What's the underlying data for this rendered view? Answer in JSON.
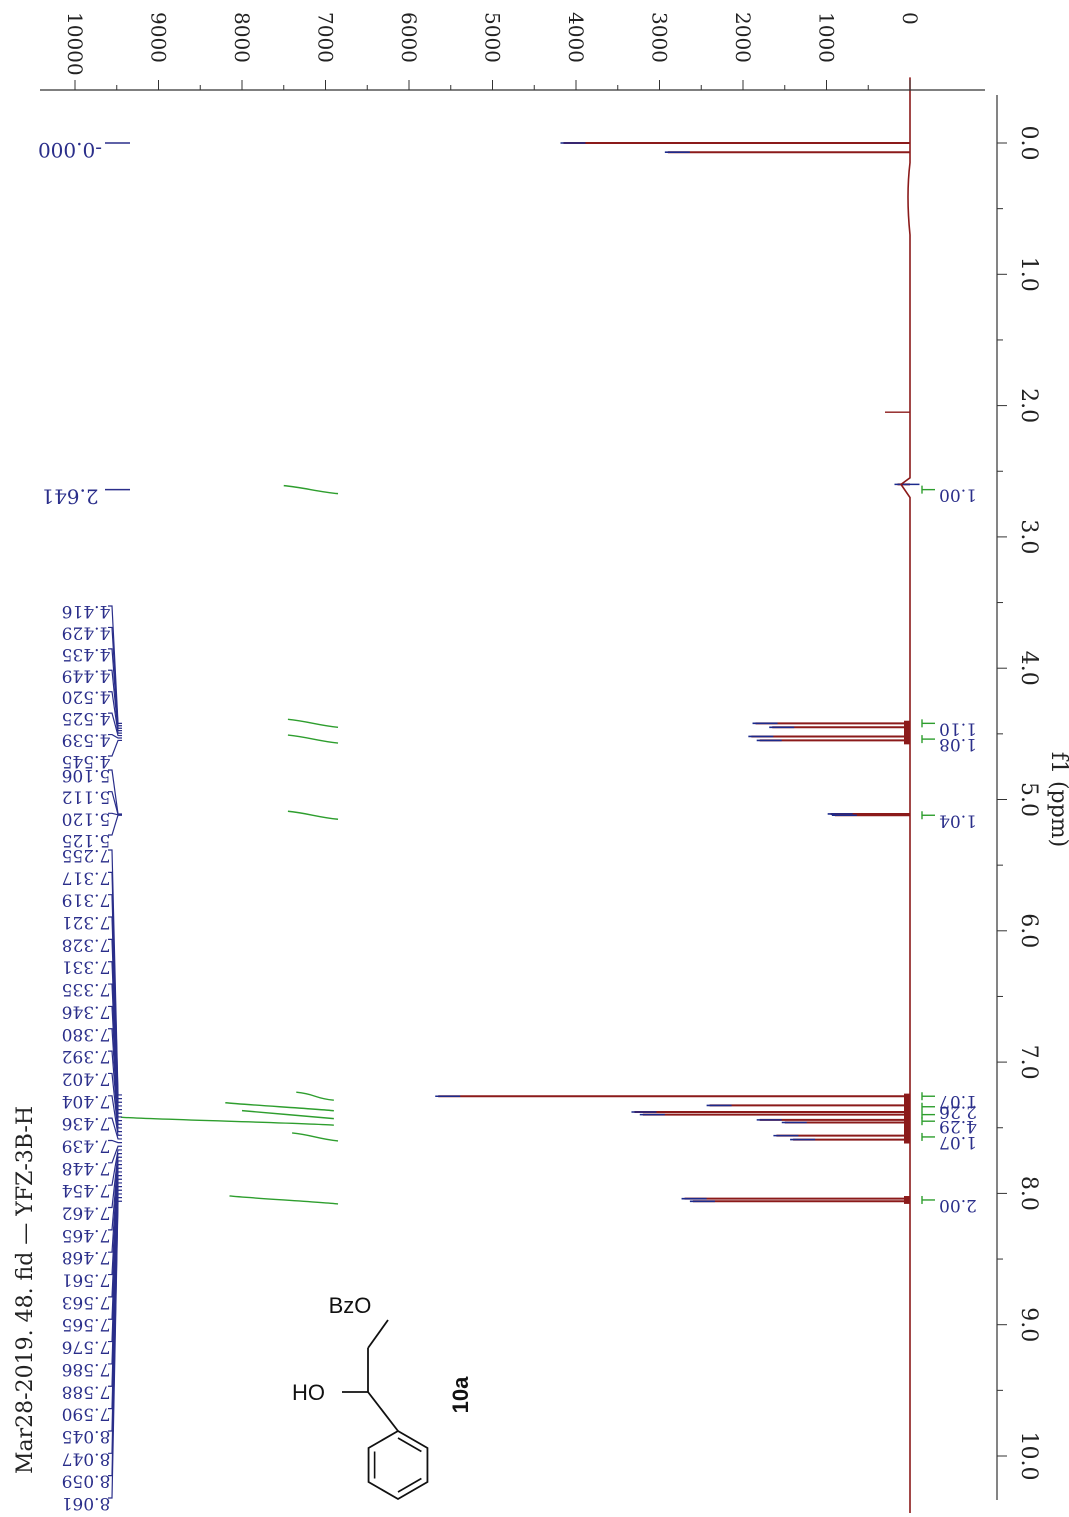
{
  "chart_data": {
    "type": "line",
    "orientation": "rotated-90",
    "title": "Mar28-2019. 48. fid — YFZ-3B-H",
    "xlabel": "f1 (ppm)",
    "ylabel": "",
    "xlim": [
      -0.5,
      10.5
    ],
    "ylim": [
      -500,
      10000
    ],
    "x_ticks": [
      "0.0",
      "1.0",
      "2.0",
      "3.0",
      "4.0",
      "5.0",
      "6.0",
      "7.0",
      "8.0",
      "9.0",
      "10.0"
    ],
    "x_tick_values": [
      0,
      1,
      2,
      3,
      4,
      5,
      6,
      7,
      8,
      9,
      10
    ],
    "y_ticks": [
      "10000",
      "9000",
      "8000",
      "7000",
      "6000",
      "5000",
      "4000",
      "3000",
      "2000",
      "1000",
      "0"
    ],
    "y_tick_values": [
      10000,
      9000,
      8000,
      7000,
      6000,
      5000,
      4000,
      3000,
      2000,
      1000,
      0
    ],
    "peaks": [
      {
        "ppm": 0.0,
        "intensity": 4150
      },
      {
        "ppm": 0.07,
        "intensity": 2900
      },
      {
        "ppm": 2.6,
        "intensity": 150
      },
      {
        "ppm": 4.42,
        "intensity": 1850
      },
      {
        "ppm": 4.45,
        "intensity": 1650
      },
      {
        "ppm": 4.52,
        "intensity": 1900
      },
      {
        "ppm": 4.55,
        "intensity": 1800
      },
      {
        "ppm": 5.11,
        "intensity": 950
      },
      {
        "ppm": 5.12,
        "intensity": 900
      },
      {
        "ppm": 7.26,
        "intensity": 5650
      },
      {
        "ppm": 7.33,
        "intensity": 2400
      },
      {
        "ppm": 7.38,
        "intensity": 3300
      },
      {
        "ppm": 7.4,
        "intensity": 3200
      },
      {
        "ppm": 7.44,
        "intensity": 1800
      },
      {
        "ppm": 7.46,
        "intensity": 1500
      },
      {
        "ppm": 7.56,
        "intensity": 1600
      },
      {
        "ppm": 7.59,
        "intensity": 1400
      },
      {
        "ppm": 8.04,
        "intensity": 2700
      },
      {
        "ppm": 8.06,
        "intensity": 2600
      }
    ],
    "integrals": [
      {
        "ppm": 2.64,
        "label": "1.00",
        "rise_from": 7500,
        "rise_to": 6850
      },
      {
        "ppm": 4.42,
        "label": "1.10",
        "rise_from": 7450,
        "rise_to": 6850
      },
      {
        "ppm": 4.54,
        "label": "1.08",
        "rise_from": 7450,
        "rise_to": 6850
      },
      {
        "ppm": 5.12,
        "label": "1.04",
        "rise_from": 7450,
        "rise_to": 6850
      },
      {
        "ppm": 7.26,
        "label": "1.07",
        "rise_from": 7350,
        "rise_to": 6900
      },
      {
        "ppm": 7.34,
        "label": "2.26",
        "rise_from": 8200,
        "rise_to": 6900
      },
      {
        "ppm": 7.4,
        "label": "",
        "rise_from": 8000,
        "rise_to": 6900
      },
      {
        "ppm": 7.45,
        "label": "4.29",
        "rise_from": 9450,
        "rise_to": 6900
      },
      {
        "ppm": 7.57,
        "label": "1.07",
        "rise_from": 7400,
        "rise_to": 6850
      },
      {
        "ppm": 8.05,
        "label": "2.00",
        "rise_from": 8150,
        "rise_to": 6850
      }
    ],
    "peak_labels": [
      {
        "group": "single-0",
        "values": [
          "-0.000"
        ]
      },
      {
        "group": "single-2.6",
        "values": [
          "2.641"
        ]
      },
      {
        "group": "cluster-4",
        "values": [
          "4.416",
          "4.429",
          "4.435",
          "4.449",
          "4.520",
          "4.525",
          "4.539",
          "4.545"
        ]
      },
      {
        "group": "cluster-5",
        "values": [
          "5.106",
          "5.112",
          "5.120",
          "5.125"
        ]
      },
      {
        "group": "cluster-7",
        "values": [
          "7.255",
          "7.317",
          "7.319",
          "7.321",
          "7.328",
          "7.331",
          "7.335",
          "7.346",
          "7.380",
          "7.392",
          "7.402",
          "7.404",
          "7.436",
          "7.439",
          "7.448",
          "7.454",
          "7.462",
          "7.465",
          "7.468",
          "7.561",
          "7.563",
          "7.565",
          "7.576",
          "7.586",
          "7.588",
          "7.590",
          "8.045",
          "8.047",
          "8.059",
          "8.061"
        ]
      }
    ],
    "grid": false,
    "colors": {
      "spectrum": "#8b1a1a",
      "peak_tick": "#1c2a8c",
      "integral": "#2e9e2e",
      "label": "#2a2e8a",
      "axis": "#333333"
    }
  },
  "compound": {
    "substituent_top": "BzO",
    "substituent_left": "HO",
    "id": "10a"
  }
}
